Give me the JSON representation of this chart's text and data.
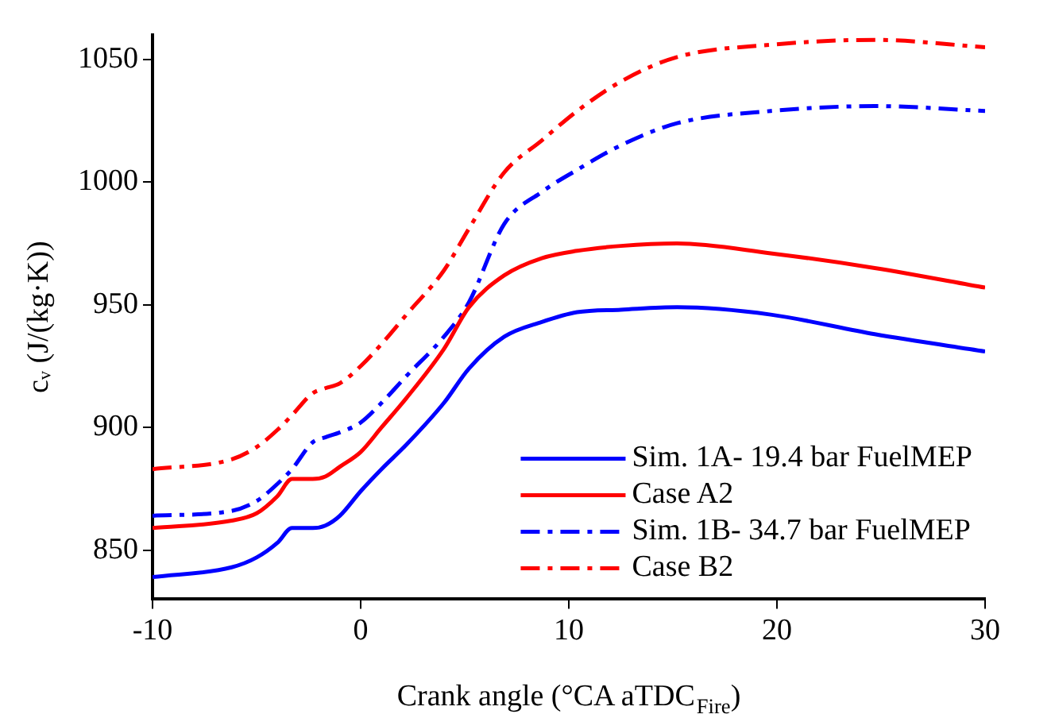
{
  "chart_data": {
    "type": "line",
    "xlabel": "Crank angle (°CA aTDC$_{Fire}$)",
    "ylabel": "cᵥ (J/(kg·K))",
    "xlim": [
      -10,
      30
    ],
    "xticks": [
      -10,
      0,
      10,
      20,
      30
    ],
    "ylim": [
      830,
      1060
    ],
    "yticks": [
      850,
      900,
      950,
      1000,
      1050
    ],
    "grid": false,
    "legend": "bottom right",
    "marker": "none",
    "series": [
      {
        "name": "Sim. 1A- 19.4 bar FuelMEP",
        "color": "#0000ff",
        "line_style": "solid",
        "x": [
          -10,
          -6.2,
          -5,
          -4,
          -3.3,
          -2.3,
          -1.7,
          -1,
          0,
          1,
          2.2,
          4,
          5.2,
          6.9,
          8.7,
          10.4,
          12.5,
          15.2,
          19.7,
          24.7,
          30
        ],
        "values": [
          839,
          843,
          847,
          853,
          859,
          859,
          860,
          864,
          874,
          883,
          893,
          910,
          924,
          937,
          943,
          947,
          948,
          949,
          946,
          938,
          931
        ]
      },
      {
        "name": "Case A2",
        "color": "#ff0000",
        "line_style": "solid",
        "x": [
          -10,
          -6.2,
          -5,
          -4,
          -3.3,
          -2.3,
          -1.7,
          -1,
          0,
          1,
          2.2,
          4,
          5.2,
          6.9,
          8.7,
          10.4,
          12.5,
          15.2,
          19.7,
          24.7,
          30
        ],
        "values": [
          859,
          862,
          865,
          872,
          879,
          879,
          880,
          884,
          890,
          900,
          912,
          932,
          949,
          962,
          969,
          972,
          974,
          975,
          971,
          965,
          957
        ]
      },
      {
        "name": "Sim. 1B- 34.7 bar FuelMEP",
        "color": "#0000ff",
        "line_style": "dashed",
        "x": [
          -10,
          -6.2,
          -5,
          -4,
          -3.3,
          -2.3,
          -1.7,
          -1,
          0,
          1,
          2.2,
          4,
          5.2,
          6.9,
          8.7,
          10.4,
          12.5,
          15.2,
          19.7,
          24.7,
          30
        ],
        "values": [
          864,
          866,
          870,
          877,
          883,
          894,
          896,
          898,
          902,
          910,
          921,
          937,
          951,
          983,
          996,
          1005,
          1015,
          1024,
          1029,
          1031,
          1029
        ]
      },
      {
        "name": "Case B2",
        "color": "#ff0000",
        "line_style": "dashed",
        "x": [
          -10,
          -6.2,
          -5,
          -4,
          -3.3,
          -2.3,
          -1.7,
          -1,
          0,
          1,
          2.2,
          4,
          5.2,
          6.9,
          8.7,
          10.4,
          12.5,
          15.2,
          19.7,
          24.7,
          30
        ],
        "values": [
          883,
          887,
          892,
          899,
          905,
          914,
          916,
          918,
          925,
          934,
          946,
          964,
          981,
          1004,
          1017,
          1029,
          1041,
          1051,
          1056,
          1058,
          1055
        ]
      }
    ]
  }
}
